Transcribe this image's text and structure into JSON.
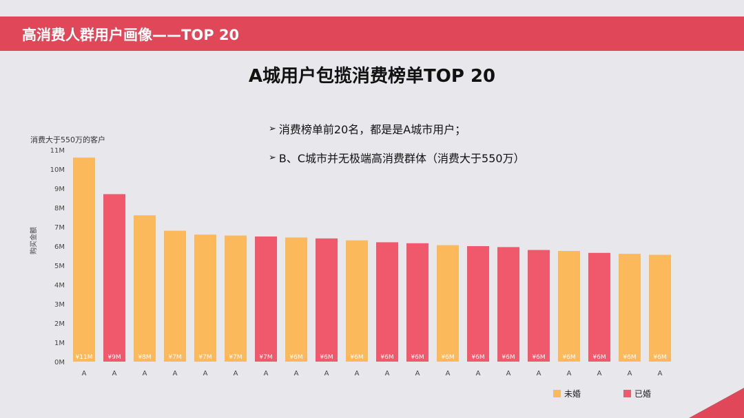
{
  "header": {
    "title": "高消费人群用户画像——TOP 20"
  },
  "main_title": "A城用户包揽消费榜单TOP 20",
  "bullets": [
    "消费榜单前20名，都是是A城市用户；",
    "B、C城市并无极端高消费群体（消费大于550万）"
  ],
  "colors": {
    "unmarried": "#fbb95c",
    "married": "#f0586c",
    "accent": "#e0485a"
  },
  "chart_data": {
    "type": "bar",
    "title": "消费大于550万的客户",
    "ylabel": "购买金额",
    "xlabel": "",
    "ylim": [
      0,
      11
    ],
    "yticks": [
      "0M",
      "1M",
      "2M",
      "3M",
      "4M",
      "5M",
      "6M",
      "7M",
      "8M",
      "9M",
      "10M",
      "11M"
    ],
    "categories": [
      "A",
      "A",
      "A",
      "A",
      "A",
      "A",
      "A",
      "A",
      "A",
      "A",
      "A",
      "A",
      "A",
      "A",
      "A",
      "A",
      "A",
      "A",
      "A",
      "A"
    ],
    "values": [
      10.6,
      8.7,
      7.6,
      6.8,
      6.6,
      6.55,
      6.5,
      6.45,
      6.4,
      6.3,
      6.2,
      6.15,
      6.05,
      6.0,
      5.95,
      5.8,
      5.75,
      5.65,
      5.6,
      5.55
    ],
    "labels": [
      "¥11M",
      "¥9M",
      "¥8M",
      "¥7M",
      "¥7M",
      "¥7M",
      "¥7M",
      "¥6M",
      "¥6M",
      "¥6M",
      "¥6M",
      "¥6M",
      "¥6M",
      "¥6M",
      "¥6M",
      "¥6M",
      "¥6M",
      "¥6M",
      "¥6M",
      "¥6M"
    ],
    "status": [
      "未婚",
      "已婚",
      "未婚",
      "未婚",
      "未婚",
      "未婚",
      "已婚",
      "未婚",
      "已婚",
      "未婚",
      "已婚",
      "已婚",
      "未婚",
      "已婚",
      "已婚",
      "已婚",
      "未婚",
      "已婚",
      "未婚",
      "未婚"
    ],
    "legend": [
      "未婚",
      "已婚"
    ]
  }
}
